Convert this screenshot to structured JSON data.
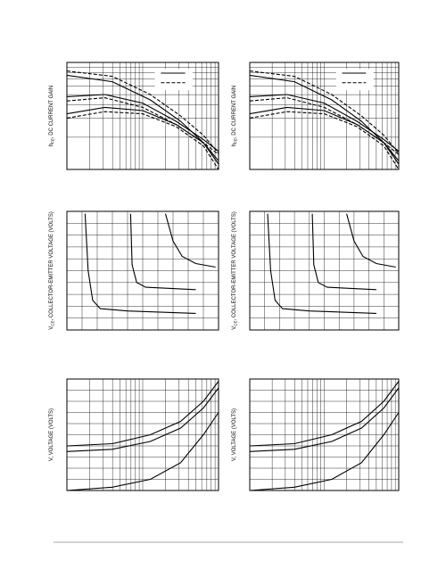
{
  "charts": [
    {
      "y_label": {
        "main": "h",
        "sub": "FE",
        "rest": ", DC CURRENT GAIN"
      }
    },
    {
      "y_label": {
        "main": "h",
        "sub": "FE",
        "rest": ", DC CURRENT GAIN"
      }
    },
    {
      "y_label": {
        "main": "V",
        "sub": "CE",
        "rest": ", COLLECTOR-EMITTER VOLTAGE (VOLTS)"
      }
    },
    {
      "y_label": {
        "main": "V",
        "sub": "CE",
        "rest": ", COLLECTOR-EMITTER VOLTAGE (VOLTS)"
      }
    },
    {
      "y_label": {
        "main": "V",
        "sub": "",
        "rest": ", VOLTAGE (VOLTS)"
      }
    },
    {
      "y_label": {
        "main": "V",
        "sub": "",
        "rest": ", VOLTAGE (VOLTS)"
      }
    }
  ]
}
